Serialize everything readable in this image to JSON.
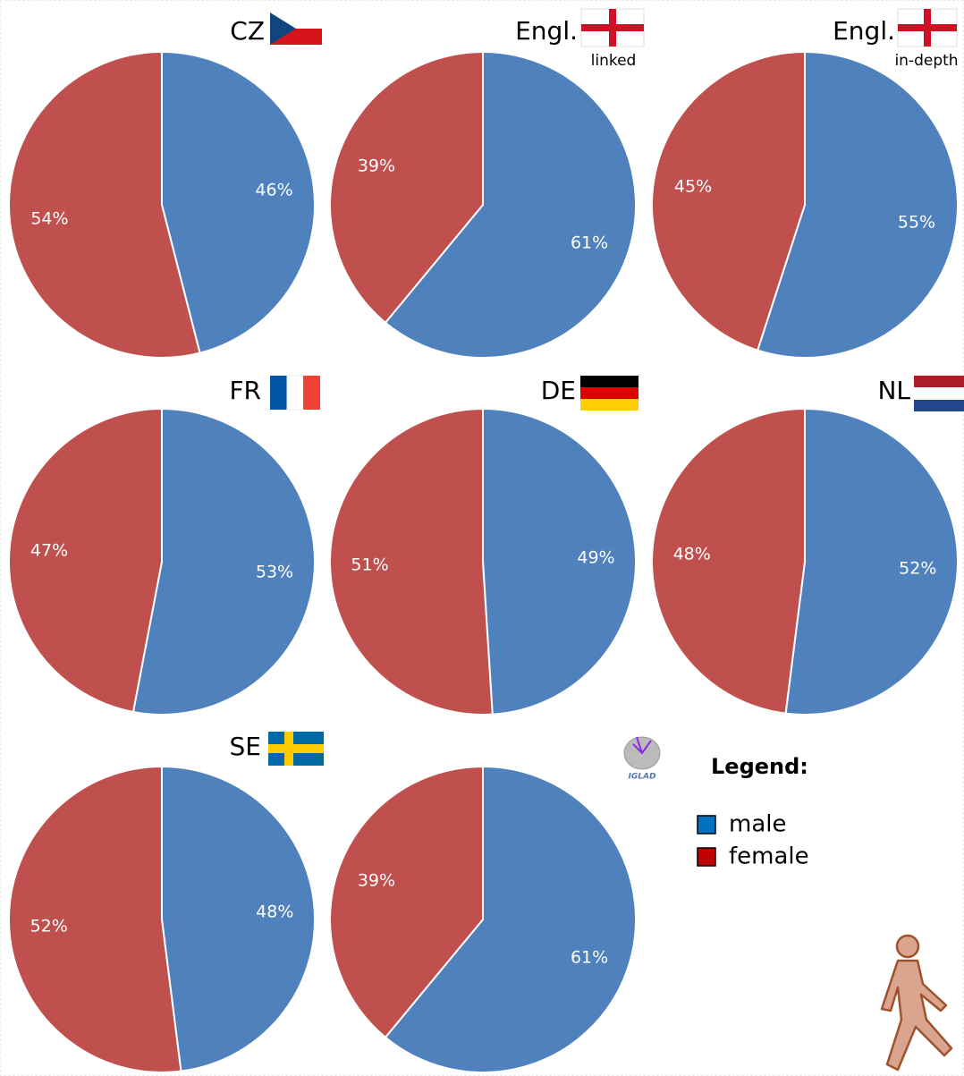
{
  "chart_data": [
    {
      "type": "pie",
      "title": "CZ",
      "values": [
        46,
        54
      ],
      "value_labels": [
        "46%",
        "54%"
      ],
      "colors": [
        "#4f81bd",
        "#c0504d"
      ]
    },
    {
      "type": "pie",
      "title": "Engl.",
      "subtitle": "linked",
      "values": [
        61,
        39
      ],
      "value_labels": [
        "61%",
        "39%"
      ],
      "colors": [
        "#4f81bd",
        "#c0504d"
      ]
    },
    {
      "type": "pie",
      "title": "Engl.",
      "subtitle": "in-depth",
      "values": [
        55,
        45
      ],
      "value_labels": [
        "55%",
        "45%"
      ],
      "colors": [
        "#4f81bd",
        "#c0504d"
      ]
    },
    {
      "type": "pie",
      "title": "FR",
      "values": [
        53,
        47
      ],
      "value_labels": [
        "53%",
        "47%"
      ],
      "colors": [
        "#4f81bd",
        "#c0504d"
      ]
    },
    {
      "type": "pie",
      "title": "DE",
      "values": [
        49,
        51
      ],
      "value_labels": [
        "49%",
        "51%"
      ],
      "colors": [
        "#4f81bd",
        "#c0504d"
      ]
    },
    {
      "type": "pie",
      "title": "NL",
      "values": [
        52,
        48
      ],
      "value_labels": [
        "52%",
        "48%"
      ],
      "colors": [
        "#4f81bd",
        "#c0504d"
      ]
    },
    {
      "type": "pie",
      "title": "SE",
      "values": [
        48,
        52
      ],
      "value_labels": [
        "48%",
        "52%"
      ],
      "colors": [
        "#4f81bd",
        "#c0504d"
      ]
    },
    {
      "type": "pie",
      "values": [
        61,
        39
      ],
      "value_labels": [
        "61%",
        "39%"
      ],
      "colors": [
        "#4f81bd",
        "#c0504d"
      ]
    }
  ],
  "legend": {
    "title": "Legend:",
    "items": [
      {
        "name": "male",
        "color": "#0070c0"
      },
      {
        "name": "female",
        "color": "#c00000"
      }
    ]
  },
  "logo": "IGLAD"
}
